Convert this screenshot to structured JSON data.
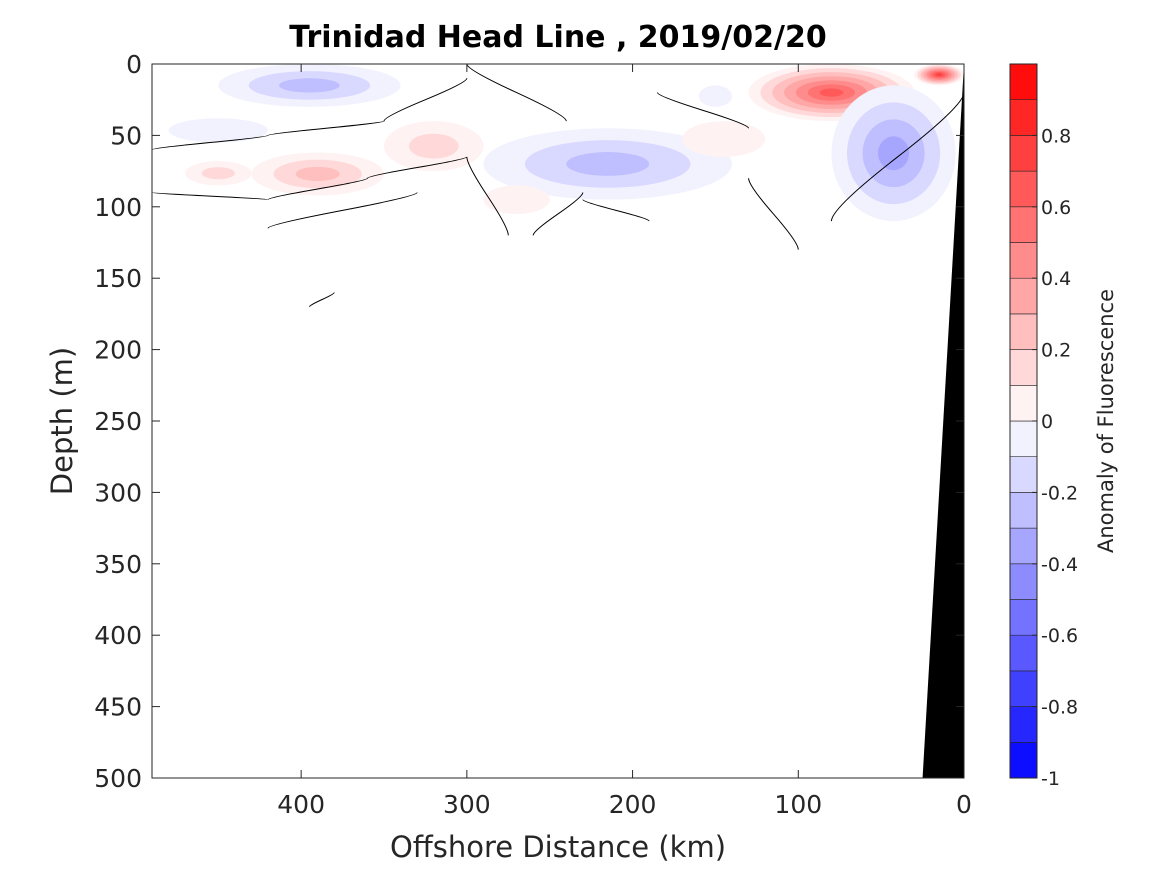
{
  "chart_data": {
    "type": "heatmap",
    "title": "Trinidad Head Line , 2019/02/20",
    "xlabel": "Offshore Distance (km)",
    "ylabel": "Depth (m)",
    "xlim": [
      490,
      0
    ],
    "ylim": [
      0,
      500
    ],
    "x_reversed": true,
    "y_reversed": true,
    "x_ticks": [
      400,
      300,
      200,
      100,
      0
    ],
    "y_ticks": [
      0,
      50,
      100,
      150,
      200,
      250,
      300,
      350,
      400,
      450,
      500
    ],
    "colorbar": {
      "label": "Anomaly of Fluorescence",
      "range": [
        -1,
        1
      ],
      "levels": 20,
      "ticks": [
        -1,
        -0.8,
        -0.6,
        -0.4,
        -0.2,
        0,
        0.2,
        0.4,
        0.6,
        0.8
      ],
      "tick_labels": [
        "-1",
        "-0.8",
        "-0.6",
        "-0.4",
        "-0.2",
        "0",
        "0.2",
        "0.4",
        "0.6",
        "0.8"
      ],
      "negative_color": "#0000ff",
      "positive_color": "#ff0000",
      "zero_color": "#ffffff"
    },
    "anomaly_patches": [
      {
        "x": [
          450,
          340
        ],
        "depth": [
          0,
          30
        ],
        "peak": -0.3
      },
      {
        "x": [
          480,
          420
        ],
        "depth": [
          38,
          55
        ],
        "peak": -0.1
      },
      {
        "x": [
          470,
          430
        ],
        "depth": [
          68,
          85
        ],
        "peak": 0.2
      },
      {
        "x": [
          430,
          350
        ],
        "depth": [
          62,
          92
        ],
        "peak": 0.3
      },
      {
        "x": [
          350,
          290
        ],
        "depth": [
          40,
          75
        ],
        "peak": 0.2
      },
      {
        "x": [
          290,
          140
        ],
        "depth": [
          45,
          95
        ],
        "peak": -0.35
      },
      {
        "x": [
          290,
          250
        ],
        "depth": [
          85,
          105
        ],
        "peak": 0.15
      },
      {
        "x": [
          170,
          120
        ],
        "depth": [
          40,
          65
        ],
        "peak": 0.1
      },
      {
        "x": [
          160,
          140
        ],
        "depth": [
          15,
          30
        ],
        "peak": -0.1
      },
      {
        "x": [
          130,
          30
        ],
        "depth": [
          0,
          40
        ],
        "peak": 0.7
      },
      {
        "x": [
          30,
          0
        ],
        "depth": [
          0,
          15
        ],
        "peak": 0.85
      },
      {
        "x": [
          80,
          5
        ],
        "depth": [
          15,
          110
        ],
        "peak": -0.4
      }
    ],
    "zero_contours": [
      {
        "x": [
          490,
          420,
          350,
          300
        ],
        "depth": [
          60,
          50,
          40,
          10
        ]
      },
      {
        "x": [
          490,
          420,
          360,
          300,
          275
        ],
        "depth": [
          90,
          95,
          80,
          65,
          120
        ]
      },
      {
        "x": [
          420,
          330
        ],
        "depth": [
          115,
          90
        ]
      },
      {
        "x": [
          395,
          380
        ],
        "depth": [
          170,
          160
        ]
      },
      {
        "x": [
          300,
          240
        ],
        "depth": [
          0,
          40
        ]
      },
      {
        "x": [
          260,
          230
        ],
        "depth": [
          120,
          90
        ]
      },
      {
        "x": [
          230,
          190
        ],
        "depth": [
          95,
          110
        ]
      },
      {
        "x": [
          185,
          130
        ],
        "depth": [
          20,
          45
        ]
      },
      {
        "x": [
          130,
          100
        ],
        "depth": [
          80,
          130
        ]
      },
      {
        "x": [
          80,
          0
        ],
        "depth": [
          110,
          20
        ]
      }
    ],
    "bathymetry": {
      "fill": "#000000",
      "x": [
        0,
        0,
        25
      ],
      "depth": [
        0,
        500,
        500
      ]
    }
  }
}
